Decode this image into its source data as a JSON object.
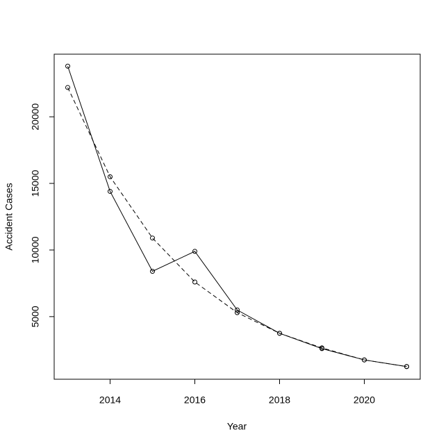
{
  "chart_data": {
    "type": "line",
    "x_label": "Year",
    "y_label": "Accident Cases",
    "x": [
      2013,
      2014,
      2015,
      2016,
      2017,
      2018,
      2019,
      2020,
      2021
    ],
    "series": [
      {
        "color": "#000000",
        "linestyle": "solid",
        "marker": "open-circle",
        "values": [
          23800,
          14400,
          8400,
          9900,
          5500,
          3750,
          2600,
          1750,
          1250
        ]
      },
      {
        "color": "#000000",
        "linestyle": "dashed",
        "marker": "open-circle",
        "values": [
          22200,
          15500,
          10900,
          7600,
          5300,
          3750,
          2650,
          1750,
          1250
        ]
      }
    ],
    "xlim": [
      2012.68,
      2021.32
    ],
    "ylim": [
      300,
      24700
    ],
    "xticks": [
      2014,
      2016,
      2018,
      2020
    ],
    "yticks": [
      5000,
      10000,
      15000,
      20000
    ],
    "grid": false
  }
}
